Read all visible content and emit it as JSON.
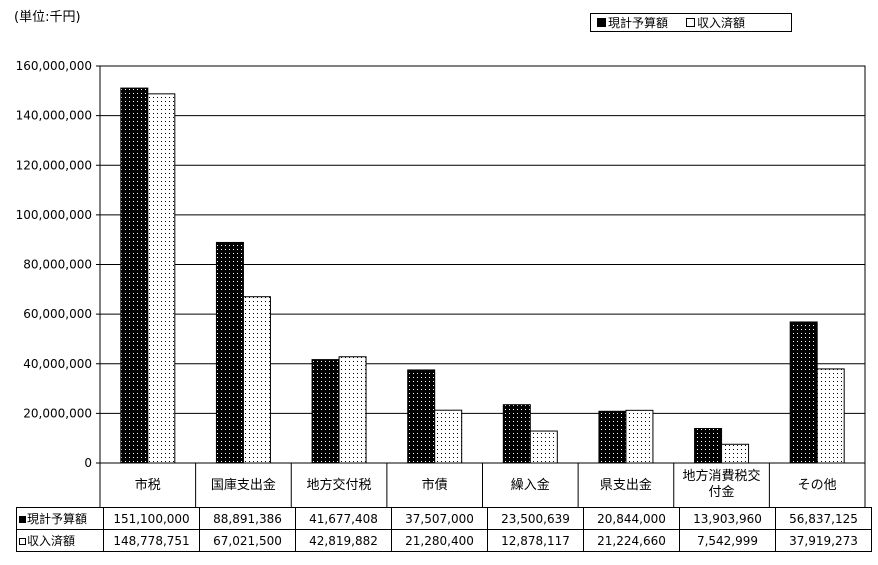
{
  "unit_label": "(単位:千円)",
  "legend": {
    "budget_label": "現計予算額",
    "received_label": "収入済額"
  },
  "table": {
    "budget_row_label": "現計予算額",
    "received_row_label": "収入済額",
    "budget_values": [
      "151,100,000",
      "88,891,386",
      "41,677,408",
      "37,507,000",
      "23,500,639",
      "20,844,000",
      "13,903,960",
      "56,837,125"
    ],
    "received_values": [
      "148,778,751",
      "67,021,500",
      "42,819,882",
      "21,280,400",
      "12,878,117",
      "21,224,660",
      "7,542,999",
      "37,919,273"
    ]
  },
  "chart_data": {
    "type": "bar",
    "categories": [
      [
        "市税"
      ],
      [
        "国庫支出金"
      ],
      [
        "地方交付税"
      ],
      [
        "市債"
      ],
      [
        "繰入金"
      ],
      [
        "県支出金"
      ],
      [
        "地方消費税交",
        "付金"
      ],
      [
        "その他"
      ]
    ],
    "series": [
      {
        "name": "現計予算額",
        "values": [
          151100000,
          88891386,
          41677408,
          37507000,
          23500639,
          20844000,
          13903960,
          56837125
        ]
      },
      {
        "name": "収入済額",
        "values": [
          148778751,
          67021500,
          42819882,
          21280400,
          12878117,
          21224660,
          7542999,
          37919273
        ]
      }
    ],
    "ylim": [
      0,
      160000000
    ],
    "yticks": [
      0,
      20000000,
      40000000,
      60000000,
      80000000,
      100000000,
      120000000,
      140000000,
      160000000
    ],
    "ytick_labels": [
      "0",
      "20,000,000",
      "40,000,000",
      "60,000,000",
      "80,000,000",
      "100,000,000",
      "120,000,000",
      "140,000,000",
      "160,000,000"
    ],
    "grid": true,
    "legend_position": "top-right"
  }
}
